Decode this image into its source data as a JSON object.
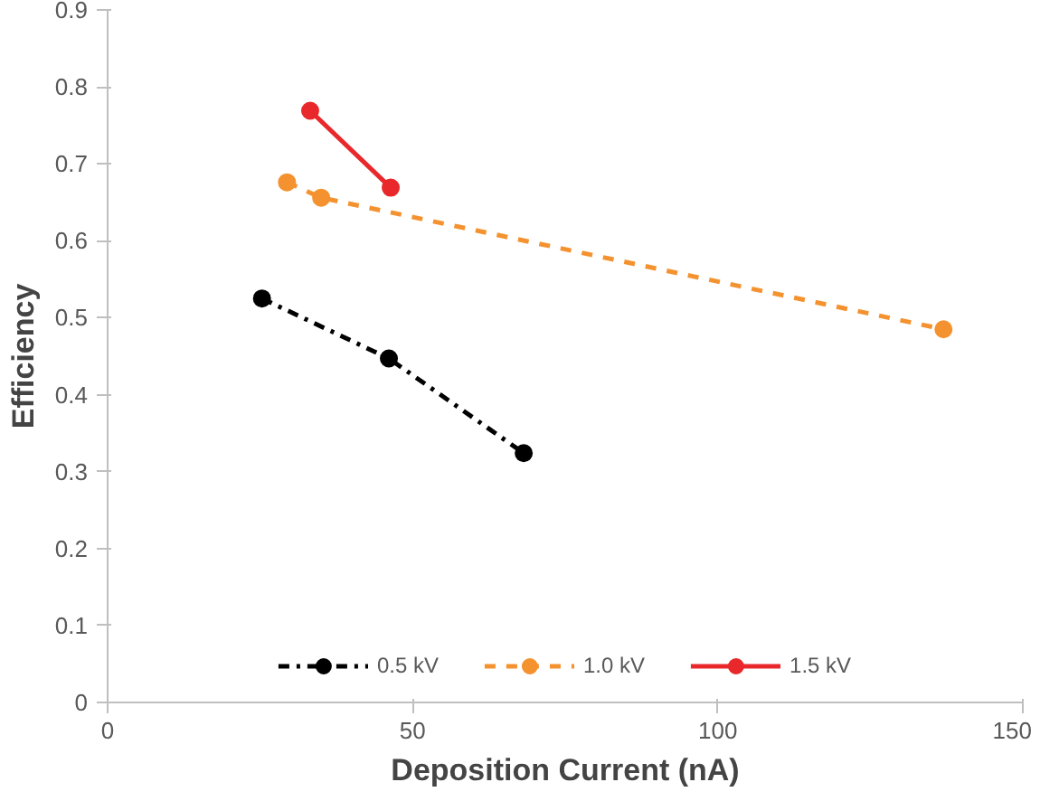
{
  "chart_data": {
    "type": "line",
    "xlabel": "Deposition Current (nA)",
    "ylabel": "Efficiency",
    "xlim": [
      0,
      150
    ],
    "xticks": [
      0,
      50,
      100,
      150
    ],
    "ylim": [
      0,
      0.9
    ],
    "yticks": [
      0,
      0.1,
      0.2,
      0.3,
      0.4,
      0.5,
      0.6,
      0.7,
      0.8,
      0.9
    ],
    "grid": false,
    "legend": "bottom",
    "marker": "circle",
    "series": [
      {
        "name": "0.5 kV",
        "color": "#000000",
        "line_style": "dashdot",
        "x": [
          25.3,
          46.1,
          68.2
        ],
        "values": [
          0.525,
          0.447,
          0.324
        ]
      },
      {
        "name": "1.0 kV",
        "color": "#f4922f",
        "line_style": "dashed",
        "x": [
          29.4,
          35,
          137
        ],
        "values": [
          0.676,
          0.656,
          0.485
        ]
      },
      {
        "name": "1.5 kV",
        "color": "#e8282b",
        "line_style": "solid",
        "x": [
          33.2,
          46.4
        ],
        "values": [
          0.769,
          0.669
        ]
      }
    ]
  }
}
